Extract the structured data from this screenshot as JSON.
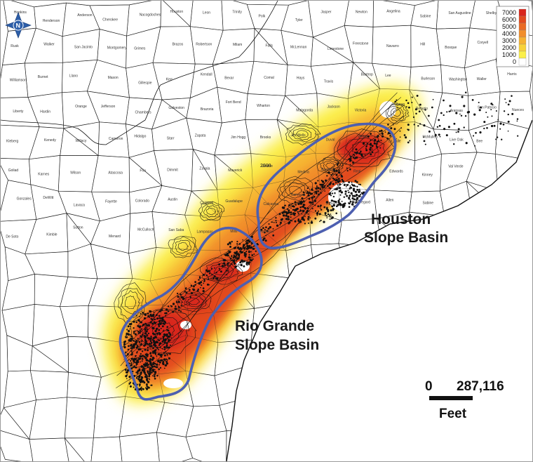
{
  "map": {
    "north_arrow_letter": "N",
    "legend": {
      "entries": [
        "7000",
        "6000",
        "5000",
        "4000",
        "3000",
        "2000",
        "1000",
        "0"
      ],
      "colors": [
        "#d9261c",
        "#e24a1f",
        "#ea6b25",
        "#f18e2c",
        "#f6b233",
        "#f8d23a",
        "#fbef4a",
        "#ffffff"
      ]
    },
    "basins": [
      {
        "name_line1": "Houston",
        "name_line2": "Slope Basin"
      },
      {
        "name_line1": "Rio Grande",
        "name_line2": "Slope Basin"
      }
    ],
    "contour_labels": [
      "2000"
    ],
    "scale_bar": {
      "start": "0",
      "end": "287,116",
      "unit": "Feet"
    },
    "county_labels": [
      "Hopkins",
      "Henderson",
      "Anderson",
      "Cherokee",
      "Nacogdoches",
      "Houston",
      "Leon",
      "Trinity",
      "Polk",
      "Tyler",
      "Jasper",
      "Newton",
      "Angelina",
      "Sabine",
      "San Augustine",
      "Shelby",
      "Panola",
      "Rusk",
      "Walker",
      "San Jacinto",
      "Montgomery",
      "Grimes",
      "Brazos",
      "Robertson",
      "Milam",
      "Falls",
      "McLennan",
      "Limestone",
      "Freestone",
      "Navarro",
      "Hill",
      "Bosque",
      "Coryell",
      "Bell",
      "Williamson",
      "Burnet",
      "Llano",
      "Mason",
      "Gillespie",
      "Kerr",
      "Kendall",
      "Bexar",
      "Comal",
      "Hays",
      "Travis",
      "Bastrop",
      "Lee",
      "Burleson",
      "Washington",
      "Waller",
      "Harris",
      "Liberty",
      "Hardin",
      "Orange",
      "Jefferson",
      "Chambers",
      "Galveston",
      "Brazoria",
      "Fort Bend",
      "Wharton",
      "Matagorda",
      "Jackson",
      "Victoria",
      "Calhoun",
      "Refugio",
      "Aransas",
      "San Patricio",
      "Nueces",
      "Kleberg",
      "Kenedy",
      "Willacy",
      "Cameron",
      "Hidalgo",
      "Starr",
      "Zapata",
      "Jim Hogg",
      "Brooks",
      "Jim Wells",
      "Duval",
      "Webb",
      "La Salle",
      "McMullen",
      "Live Oak",
      "Bee",
      "Goliad",
      "Karnes",
      "Wilson",
      "Atascosa",
      "Frio",
      "Dimmit",
      "Zavala",
      "Maverick",
      "Uvalde",
      "Medina",
      "Bandera",
      "Real",
      "Edwards",
      "Kinney",
      "Val Verde",
      "Gonzales",
      "DeWitt",
      "Lavaca",
      "Fayette",
      "Colorado",
      "Austin",
      "Caldwell",
      "Guadalupe",
      "Calcasieu",
      "Cameron",
      "Vernon",
      "Beauregard",
      "Allen",
      "Sabine",
      "De Soto",
      "Kimble",
      "Sutton",
      "Menard",
      "McCulloch",
      "San Saba",
      "Lampasas",
      "Mills",
      "Hamilton"
    ]
  }
}
